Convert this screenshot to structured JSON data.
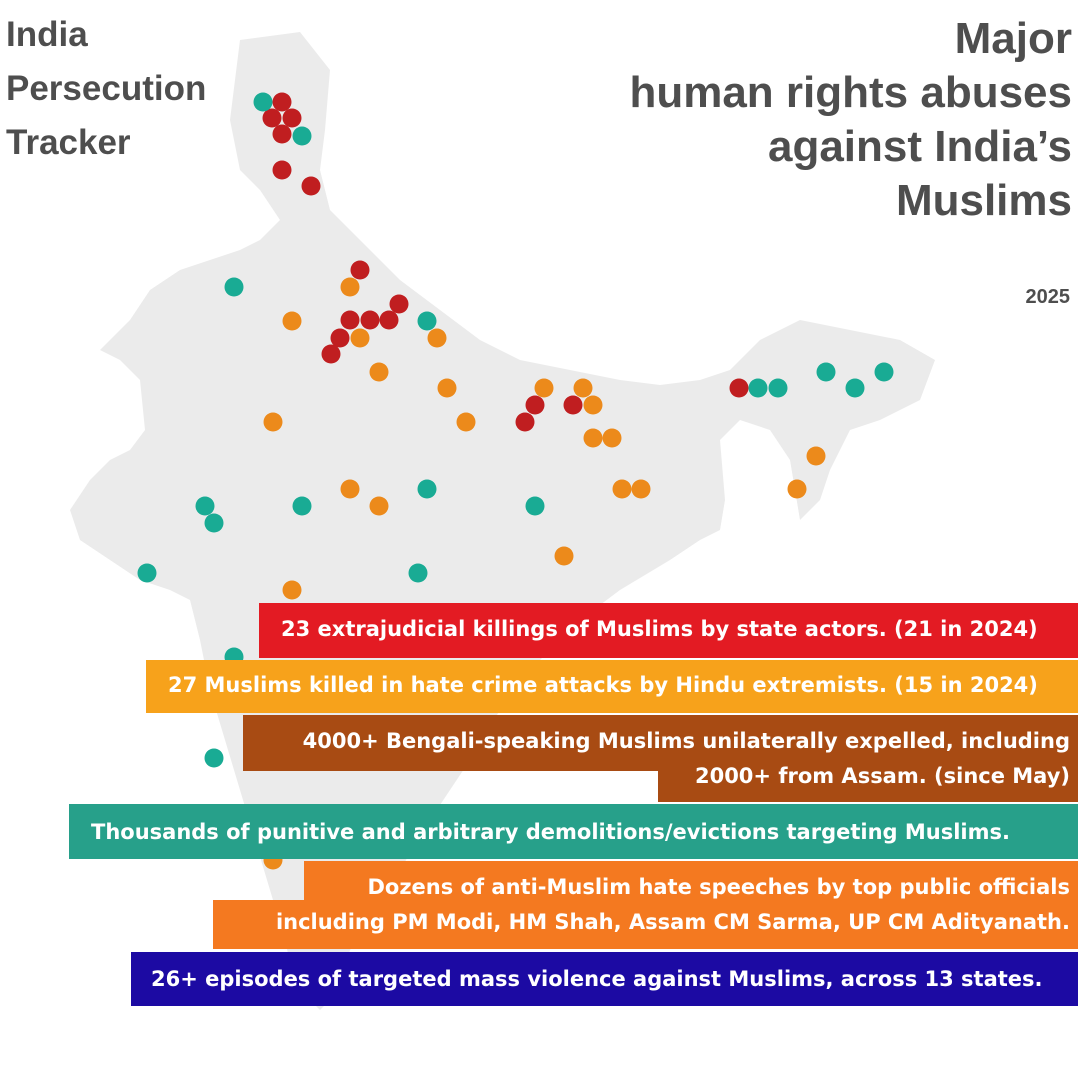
{
  "brand": {
    "lines": [
      "India",
      "Persecution",
      "Tracker"
    ]
  },
  "headline": {
    "lines": [
      "Major",
      "human rights abuses",
      "against India’s",
      "Muslims"
    ],
    "year": "2025"
  },
  "colors": {
    "map_fill": "#ebebeb",
    "text_dark": "#4e4e4e",
    "killings_red": "#e31b23",
    "hate_crime_orange": "#f7a21b",
    "expelled_brown": "#a84b13",
    "demolition_teal": "#27a08a",
    "hate_speech_orange": "#f47920",
    "mass_violence_blue": "#1c0aa3",
    "marker_red": "#c01e20",
    "marker_orange": "#ec8a1b",
    "marker_teal": "#19ab94"
  },
  "stats": [
    {
      "id": "killings",
      "lines": [
        "23 extrajudicial killings of Muslims by state actors. (21 in 2024)"
      ],
      "color": "#e31b23"
    },
    {
      "id": "hate-crime",
      "lines": [
        "27 Muslims killed in hate crime attacks by Hindu extremists. (15 in 2024)"
      ],
      "color": "#f7a21b"
    },
    {
      "id": "expelled",
      "lines": [
        "4000+ Bengali-speaking Muslims unilaterally expelled, including",
        "2000+ from Assam. (since May)"
      ],
      "color": "#a84b13"
    },
    {
      "id": "demolitions",
      "lines": [
        "Thousands of punitive and arbitrary demolitions/evictions targeting Muslims."
      ],
      "color": "#27a08a"
    },
    {
      "id": "hate-speech",
      "lines": [
        "Dozens of anti-Muslim hate speeches by top public officials",
        "including PM Modi, HM Shah, Assam CM Sarma, UP CM Adityanath."
      ],
      "color": "#f47920"
    },
    {
      "id": "mass-violence",
      "lines": [
        "26+ episodes of targeted mass violence against Muslims, across 13 states."
      ],
      "color": "#1c0aa3"
    }
  ]
}
